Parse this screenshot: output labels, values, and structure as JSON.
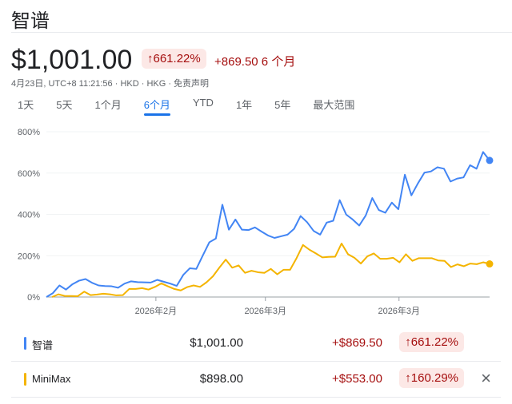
{
  "header": {
    "title": "智谱"
  },
  "quote": {
    "price": "$1,001.00",
    "change_percent": "↑661.22%",
    "change_abs": "+869.50 6 个月",
    "meta": "4月23日, UTC+8 11:21:56 · HKD · HKG · 免责声明"
  },
  "tabs": [
    {
      "label": "1天"
    },
    {
      "label": "5天"
    },
    {
      "label": "1个月"
    },
    {
      "label": "6个月",
      "active": true
    },
    {
      "label": "YTD"
    },
    {
      "label": "1年"
    },
    {
      "label": "5年"
    },
    {
      "label": "最大范围"
    }
  ],
  "colors": {
    "series_blue": "#4285f4",
    "series_yellow": "#f4b400",
    "negative_bg": "#fce8e6",
    "up_red": "#a50e0e"
  },
  "chart_data": {
    "type": "line",
    "y_tick_labels": [
      "0%",
      "200%",
      "400%",
      "600%",
      "800%"
    ],
    "ylim": [
      0,
      800
    ],
    "x_tick_labels": [
      "2026年2月",
      "2026年3月",
      "2026年3月"
    ],
    "grid": true,
    "series": [
      {
        "name": "智谱",
        "color": "#4285f4",
        "values": [
          0,
          19,
          56,
          36,
          62,
          79,
          87,
          69,
          56,
          53,
          52,
          45,
          65,
          76,
          72,
          71,
          70,
          83,
          74,
          65,
          54,
          107,
          139,
          136,
          201,
          265,
          283,
          447,
          326,
          375,
          326,
          324,
          337,
          317,
          298,
          286,
          294,
          302,
          330,
          392,
          362,
          320,
          302,
          360,
          369,
          469,
          399,
          375,
          346,
          395,
          479,
          421,
          408,
          457,
          425,
          592,
          492,
          550,
          602,
          608,
          628,
          621,
          559,
          573,
          579,
          638,
          621,
          702,
          661.22
        ]
      },
      {
        "name": "MiniMax",
        "color": "#f4b400",
        "values": [
          0,
          13,
          5,
          5,
          4,
          26,
          9,
          12,
          16,
          13,
          8,
          9,
          39,
          39,
          43,
          36,
          49,
          66,
          52,
          39,
          32,
          48,
          56,
          49,
          71,
          100,
          142,
          181,
          142,
          153,
          117,
          127,
          120,
          117,
          136,
          110,
          132,
          132,
          188,
          252,
          229,
          211,
          192,
          194,
          195,
          259,
          207,
          190,
          162,
          197,
          211,
          185,
          185,
          190,
          168,
          207,
          175,
          188,
          188,
          188,
          177,
          175,
          145,
          158,
          149,
          162,
          159,
          168,
          160.29
        ]
      }
    ]
  },
  "comparison": [
    {
      "name": "智谱",
      "color": "#4285f4",
      "price": "$1,001.00",
      "change": "+$869.50",
      "percent": "↑661.22%"
    },
    {
      "name": "MiniMax",
      "color": "#f4b400",
      "price": "$898.00",
      "change": "+$553.00",
      "percent": "↑160.29%",
      "remove_icon": "×"
    }
  ]
}
